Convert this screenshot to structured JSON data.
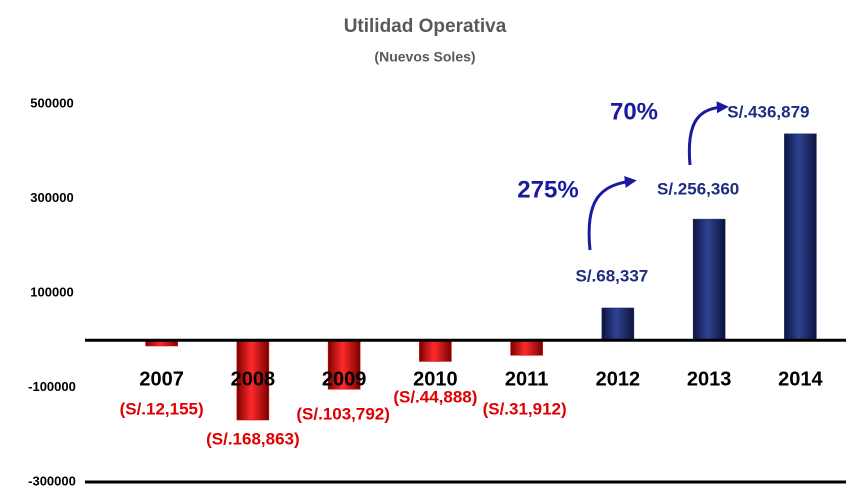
{
  "chart_data": {
    "type": "bar",
    "title": "Utilidad Operativa",
    "subtitle": "(Nuevos Soles)",
    "categories": [
      "2007",
      "2008",
      "2009",
      "2010",
      "2011",
      "2012",
      "2013",
      "2014"
    ],
    "values": [
      -12155,
      -168863,
      -103792,
      -44888,
      -31912,
      68337,
      256360,
      436879
    ],
    "value_labels": [
      "(S/.12,155)",
      "(S/.168,863)",
      "(S/.103,792)",
      "(S/.44,888)",
      "(S/.31,912)",
      "S/.68,337",
      "S/.256,360",
      "S/.436,879"
    ],
    "colors": [
      "#d40000",
      "#d40000",
      "#d40000",
      "#d40000",
      "#d40000",
      "#1b2a66",
      "#1b2a66",
      "#1b2a66"
    ],
    "label_colors": [
      "#e00000",
      "#e00000",
      "#e00000",
      "#e00000",
      "#e00000",
      "#1f2d80",
      "#1f2d80",
      "#1f2d80"
    ],
    "annotations": [
      {
        "text": "275%",
        "color": "#1a1aa0"
      },
      {
        "text": "70%",
        "color": "#1a1aa0"
      }
    ],
    "ylim": [
      -300000,
      500000
    ],
    "yticks": [
      500000,
      300000,
      100000,
      -100000,
      -300000
    ],
    "grid": false
  }
}
